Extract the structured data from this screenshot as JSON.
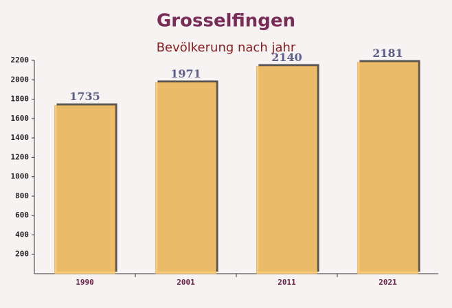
{
  "chart_data": {
    "type": "bar",
    "title": "Grosselfingen",
    "subtitle": "Bevölkerung nach jahr",
    "categories": [
      "1990",
      "2001",
      "2011",
      "2021"
    ],
    "values": [
      1735,
      1971,
      2140,
      2181
    ],
    "color": "#fbc76c",
    "ylim": [
      0,
      2200
    ],
    "yticks": [
      200,
      400,
      600,
      800,
      1000,
      1200,
      1400,
      1600,
      1800,
      2000,
      2200
    ],
    "grid": false
  }
}
